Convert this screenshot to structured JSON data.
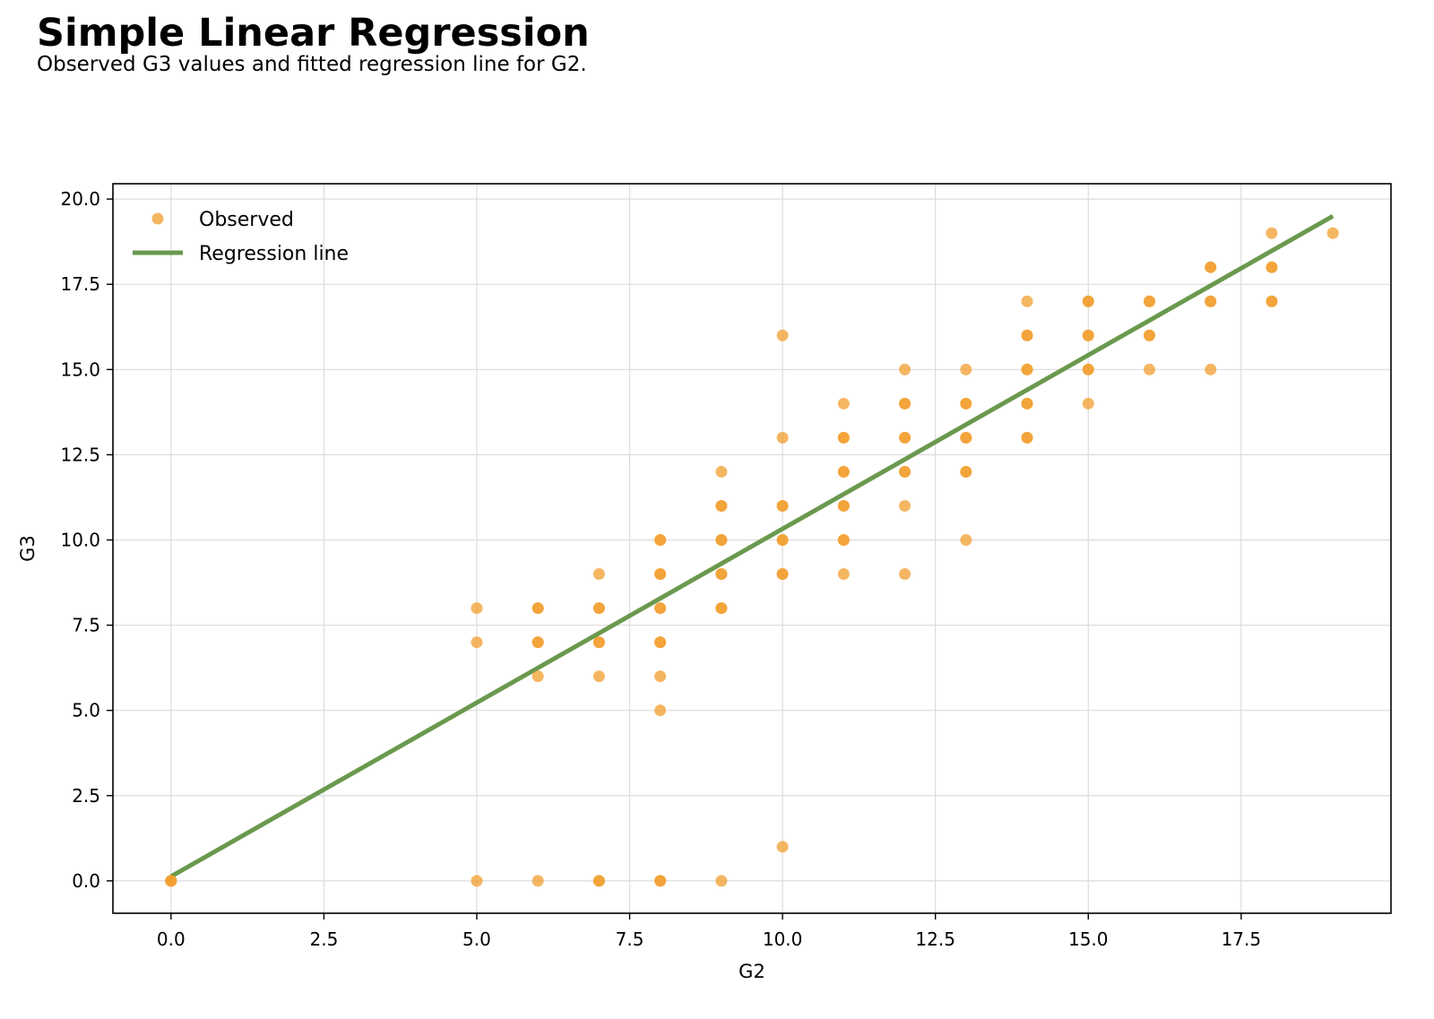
{
  "chart_data": {
    "type": "scatter",
    "title": "Simple Linear Regression",
    "subtitle": "Observed G3 values and fitted regression line for G2.",
    "xlabel": "G2",
    "ylabel": "G3",
    "xlim": [
      -0.95,
      19.95
    ],
    "ylim": [
      -0.95,
      20.45
    ],
    "xticks": [
      "0.0",
      "2.5",
      "5.0",
      "7.5",
      "10.0",
      "12.5",
      "15.0",
      "17.5"
    ],
    "yticks": [
      "0.0",
      "2.5",
      "5.0",
      "7.5",
      "10.0",
      "12.5",
      "15.0",
      "17.5",
      "20.0"
    ],
    "grid": true,
    "legend_position": "top-left",
    "series": [
      {
        "name": "Observed",
        "kind": "scatter",
        "color": "#f29d2e",
        "points": [
          [
            0,
            0
          ],
          [
            0,
            0
          ],
          [
            0,
            0
          ],
          [
            5,
            0
          ],
          [
            5,
            7
          ],
          [
            5,
            8
          ],
          [
            6,
            0
          ],
          [
            6,
            6
          ],
          [
            6,
            7
          ],
          [
            6,
            7
          ],
          [
            6,
            8
          ],
          [
            6,
            8
          ],
          [
            7,
            0
          ],
          [
            7,
            0
          ],
          [
            7,
            6
          ],
          [
            7,
            7
          ],
          [
            7,
            7
          ],
          [
            7,
            8
          ],
          [
            7,
            8
          ],
          [
            7,
            9
          ],
          [
            8,
            0
          ],
          [
            8,
            0
          ],
          [
            8,
            5
          ],
          [
            8,
            6
          ],
          [
            8,
            7
          ],
          [
            8,
            7
          ],
          [
            8,
            8
          ],
          [
            8,
            8
          ],
          [
            8,
            9
          ],
          [
            8,
            9
          ],
          [
            8,
            10
          ],
          [
            8,
            10
          ],
          [
            9,
            0
          ],
          [
            9,
            8
          ],
          [
            9,
            8
          ],
          [
            9,
            9
          ],
          [
            9,
            9
          ],
          [
            9,
            10
          ],
          [
            9,
            10
          ],
          [
            9,
            11
          ],
          [
            9,
            11
          ],
          [
            9,
            12
          ],
          [
            10,
            1
          ],
          [
            10,
            9
          ],
          [
            10,
            9
          ],
          [
            10,
            10
          ],
          [
            10,
            10
          ],
          [
            10,
            11
          ],
          [
            10,
            11
          ],
          [
            10,
            13
          ],
          [
            10,
            16
          ],
          [
            11,
            9
          ],
          [
            11,
            10
          ],
          [
            11,
            10
          ],
          [
            11,
            11
          ],
          [
            11,
            11
          ],
          [
            11,
            12
          ],
          [
            11,
            12
          ],
          [
            11,
            13
          ],
          [
            11,
            13
          ],
          [
            11,
            14
          ],
          [
            12,
            9
          ],
          [
            12,
            11
          ],
          [
            12,
            12
          ],
          [
            12,
            12
          ],
          [
            12,
            13
          ],
          [
            12,
            13
          ],
          [
            12,
            14
          ],
          [
            12,
            14
          ],
          [
            12,
            15
          ],
          [
            13,
            10
          ],
          [
            13,
            12
          ],
          [
            13,
            12
          ],
          [
            13,
            13
          ],
          [
            13,
            13
          ],
          [
            13,
            14
          ],
          [
            13,
            14
          ],
          [
            13,
            15
          ],
          [
            14,
            13
          ],
          [
            14,
            13
          ],
          [
            14,
            14
          ],
          [
            14,
            14
          ],
          [
            14,
            15
          ],
          [
            14,
            15
          ],
          [
            14,
            16
          ],
          [
            14,
            16
          ],
          [
            14,
            17
          ],
          [
            15,
            14
          ],
          [
            15,
            15
          ],
          [
            15,
            15
          ],
          [
            15,
            16
          ],
          [
            15,
            16
          ],
          [
            15,
            17
          ],
          [
            15,
            17
          ],
          [
            16,
            15
          ],
          [
            16,
            16
          ],
          [
            16,
            16
          ],
          [
            16,
            17
          ],
          [
            16,
            17
          ],
          [
            17,
            15
          ],
          [
            17,
            17
          ],
          [
            17,
            17
          ],
          [
            17,
            18
          ],
          [
            17,
            18
          ],
          [
            18,
            17
          ],
          [
            18,
            17
          ],
          [
            18,
            18
          ],
          [
            18,
            18
          ],
          [
            18,
            19
          ],
          [
            19,
            19
          ]
        ]
      },
      {
        "name": "Regression line",
        "kind": "line",
        "color": "#6a994e",
        "x": [
          0,
          19
        ],
        "y": [
          0.13,
          19.5
        ]
      }
    ]
  }
}
